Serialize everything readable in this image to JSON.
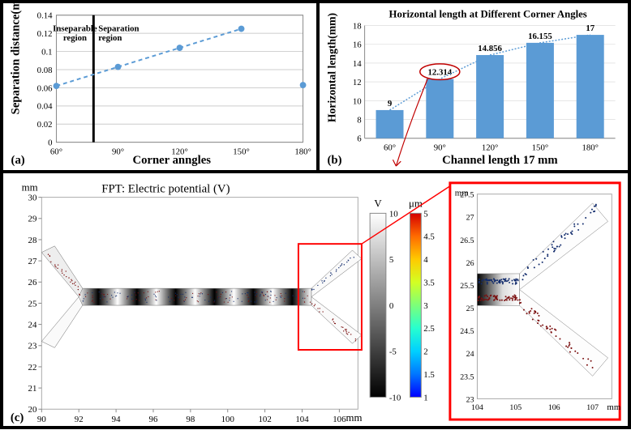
{
  "panel_a": {
    "type": "scatter-line",
    "xlabel": "Corner anngles",
    "ylabel": "Separation distance(mm)",
    "label_fontsize": 15,
    "categories": [
      "60°",
      "90°",
      "120°",
      "150°",
      "180°"
    ],
    "values": [
      0.062,
      0.083,
      0.104,
      0.125,
      0.063
    ],
    "ylim_min": 0,
    "ylim_max": 0.14,
    "ytick_step": 0.02,
    "yticks": [
      "0",
      "0.02",
      "0.04",
      "0.06",
      "0.08",
      "0.1",
      "0.12",
      "0.14"
    ],
    "line_color": "#5b9bd5",
    "marker_size": 4,
    "dash": "5,4",
    "connect_last": false,
    "region1": "Inseparable region",
    "region2": "Separation region",
    "region_fontsize": 11,
    "divider_x_index": 1,
    "tag": "(a)",
    "tag_fontsize": 15,
    "tick_fontsize": 11,
    "background": "#ffffff",
    "grid_color": "#e5e5e5"
  },
  "panel_b": {
    "type": "bar",
    "title": "Horizontal length at Different Corner Angles",
    "title_fontsize": 13,
    "xlabel": "Channel length 17 mm",
    "ylabel": "Horizontal length(mm)",
    "label_fontsize": 14,
    "categories": [
      "60°",
      "90°",
      "120°",
      "150°",
      "180°"
    ],
    "values": [
      9,
      12.314,
      14.856,
      16.155,
      17
    ],
    "value_labels": [
      "9",
      "12.314",
      "14.856",
      "16.155",
      "17"
    ],
    "ylim_min": 6,
    "ylim_max": 18,
    "ytick_step": 2,
    "yticks": [
      "6",
      "8",
      "10",
      "12",
      "14",
      "16",
      "18"
    ],
    "bar_color": "#5b9bd5",
    "bar_width": 0.55,
    "trend_color": "#5b9bd5",
    "callout_color": "#c00000",
    "callout_index": 1,
    "tag": "(b)",
    "tag_fontsize": 15,
    "tick_fontsize": 11,
    "background": "#ffffff",
    "grid_color": "#e5e5e5"
  },
  "panel_c": {
    "type": "simulation",
    "title": "FPT: Electric potential (V)",
    "title_fontsize": 15,
    "xunit": "mm",
    "yunit": "mm",
    "xlim_min": 90,
    "xlim_max": 107,
    "ylim_min": 20,
    "ylim_max": 30,
    "xticks": [
      "90",
      "92",
      "94",
      "96",
      "98",
      "100",
      "102",
      "104",
      "106"
    ],
    "yticks": [
      "20",
      "21",
      "22",
      "23",
      "24",
      "25",
      "26",
      "27",
      "28",
      "29",
      "30"
    ],
    "channel_color": "#ffffff",
    "channel_border": "#666666",
    "gradient_dark": "#000000",
    "gradient_light": "#ffffff",
    "particle_color_a": "#7a0e0e",
    "particle_color_b": "#102a6b",
    "colorbar_v_label": "V",
    "colorbar_v_min": -10,
    "colorbar_v_max": 10,
    "colorbar_v_step": 5,
    "colorbar_v_ticks": [
      "-10",
      "-5",
      "0",
      "5",
      "10"
    ],
    "colorbar_um_label": "μm",
    "colorbar_um_min": 1,
    "colorbar_um_max": 5,
    "colorbar_um_step": 0.5,
    "colorbar_um_ticks": [
      "1",
      "1.5",
      "2",
      "2.5",
      "3",
      "3.5",
      "4",
      "4.5",
      "5"
    ],
    "um_colors": [
      "#0000ff",
      "#0076ff",
      "#00d0ff",
      "#27ffcf",
      "#7dff79",
      "#d3ff23",
      "#ffca00",
      "#ff6b00",
      "#d40000"
    ],
    "inset": {
      "xlim_min": 104,
      "xlim_max": 107.5,
      "ylim_min": 23,
      "ylim_max": 27.5,
      "xticks": [
        "104",
        "105",
        "106",
        "107"
      ],
      "yticks": [
        "23",
        "23.5",
        "24",
        "24.5",
        "25",
        "25.5",
        "26",
        "26.5",
        "27",
        "27.5"
      ],
      "xunit": "mm",
      "yunit": "mm"
    },
    "callout_color": "#ff0000",
    "tag": "(c)",
    "tag_fontsize": 15,
    "tick_fontsize": 11
  }
}
